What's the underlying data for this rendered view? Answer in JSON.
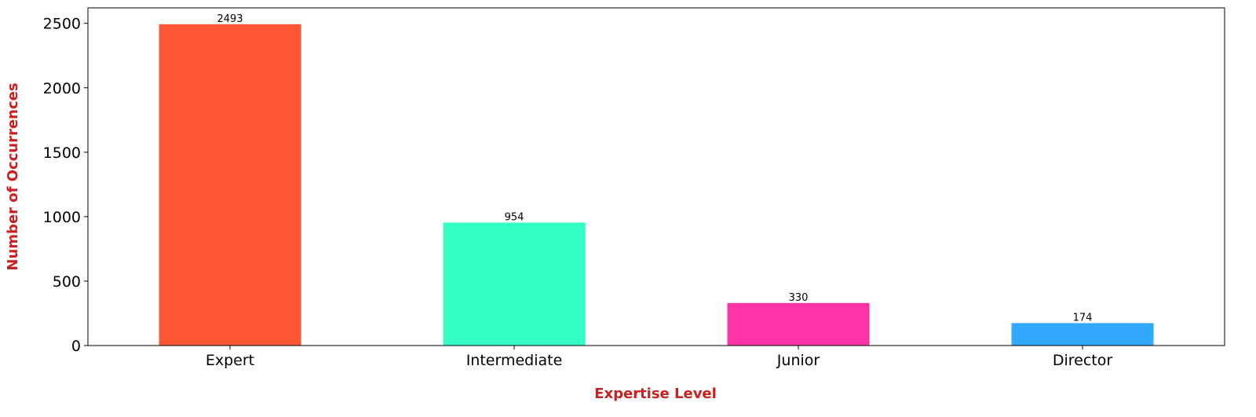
{
  "chart_data": {
    "type": "bar",
    "title": "",
    "xlabel": "Expertise Level",
    "ylabel": "Number of Occurrences",
    "categories": [
      "Expert",
      "Intermediate",
      "Junior",
      "Director"
    ],
    "values": [
      2493,
      954,
      330,
      174
    ],
    "data_labels": [
      "2493",
      "954",
      "330",
      "174"
    ],
    "bar_colors": [
      "#ff5733",
      "#33ffc4",
      "#ff33a8",
      "#33a8ff"
    ],
    "label_color": "#cc1f1f",
    "ylim": [
      0,
      2620
    ],
    "yticks": [
      0,
      500,
      1000,
      1500,
      2000,
      2500
    ],
    "grid": false,
    "legend": "none"
  }
}
